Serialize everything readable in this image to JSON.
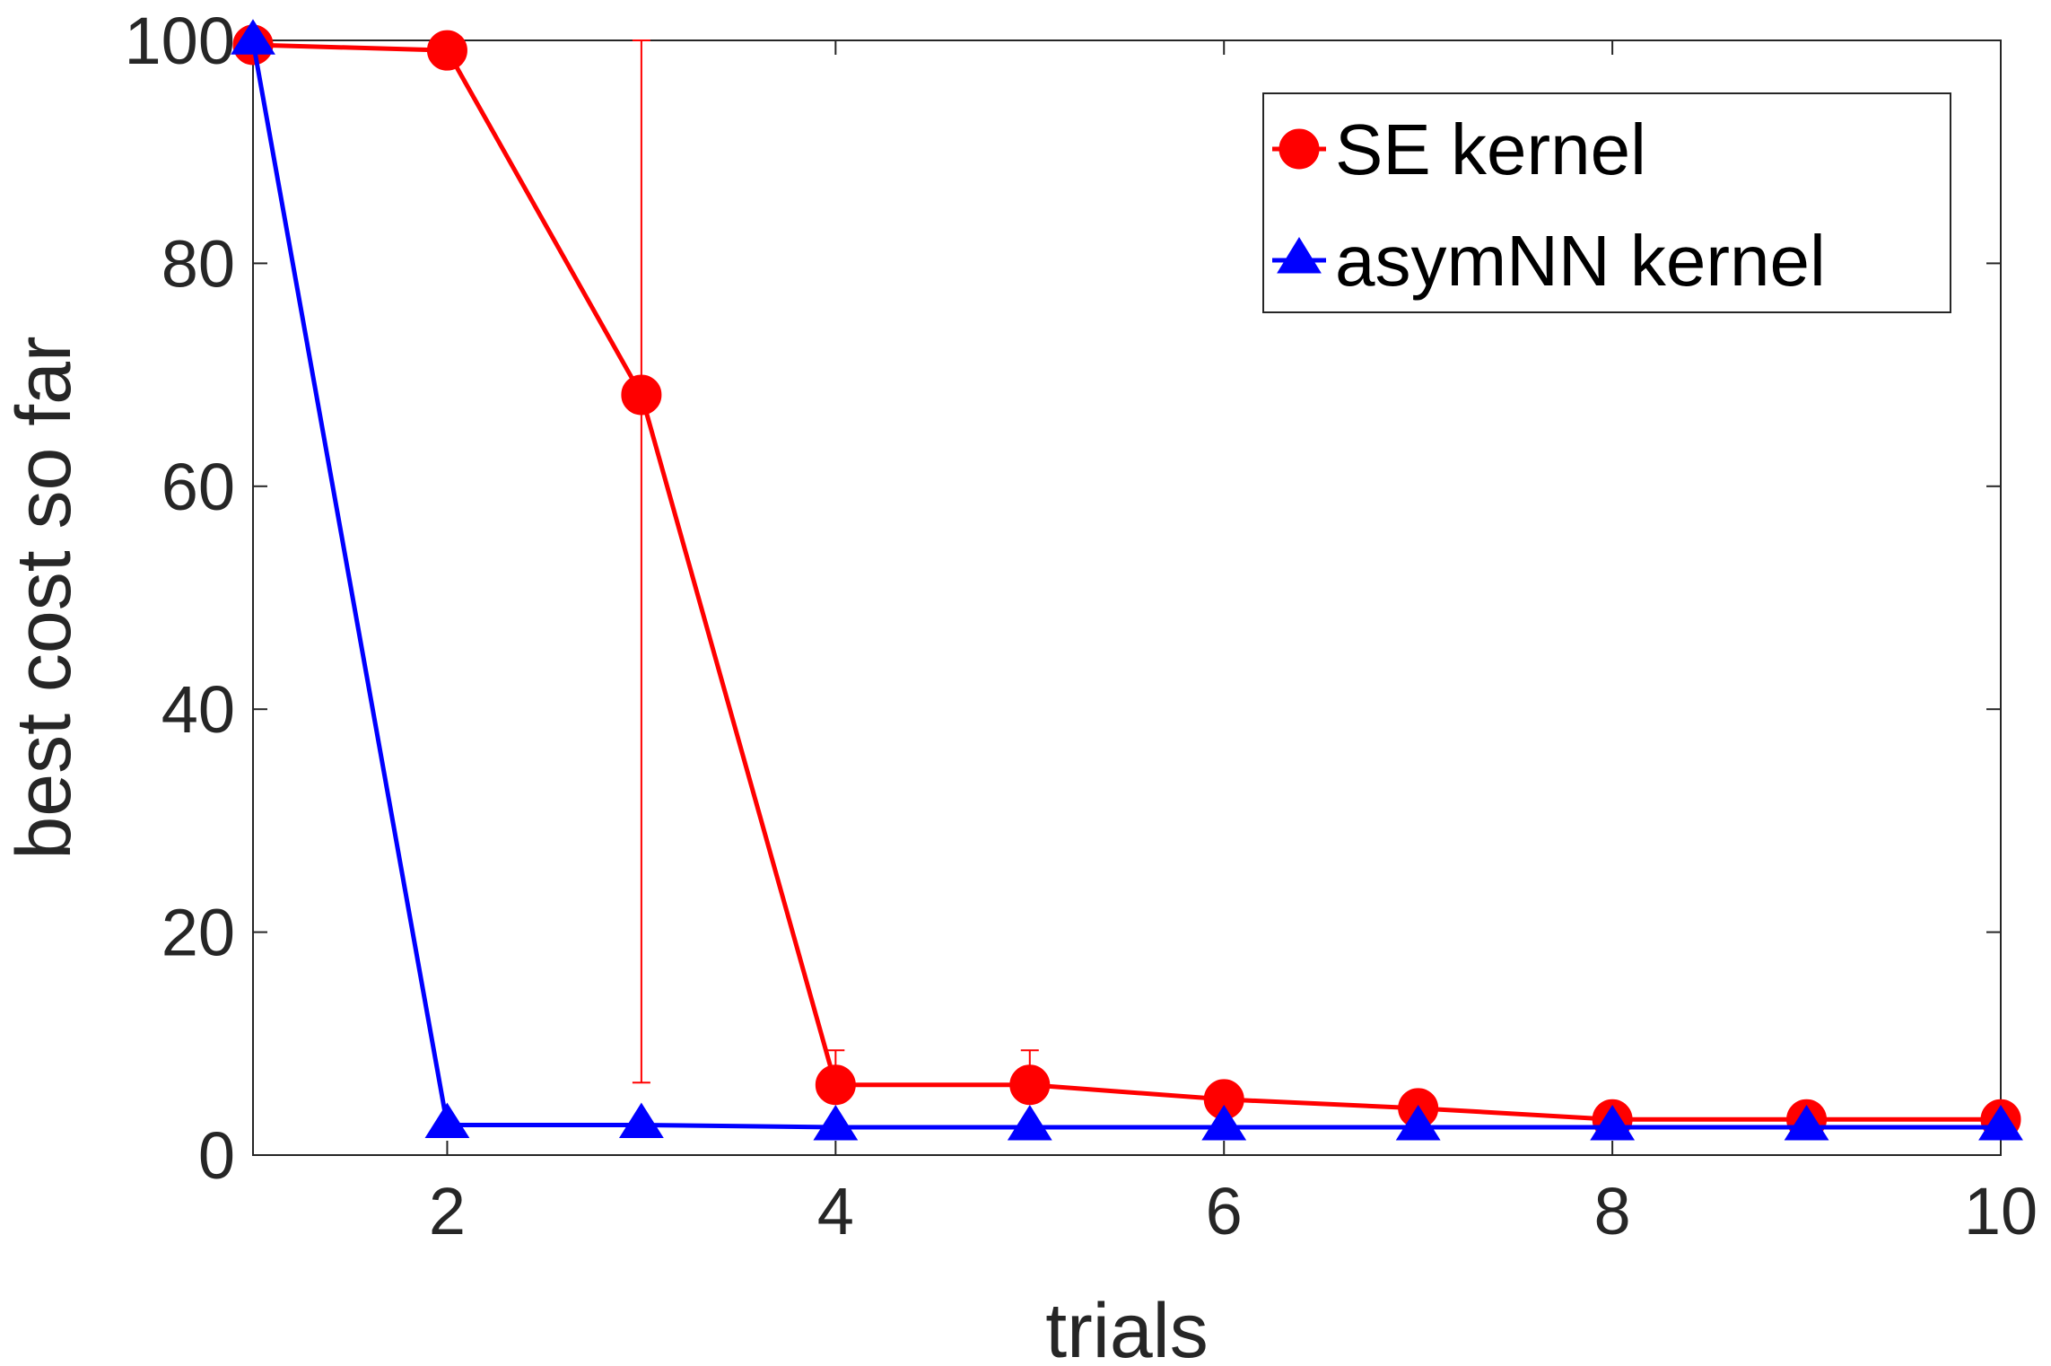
{
  "chart_data": {
    "type": "line",
    "title": "",
    "xlabel": "trials",
    "ylabel": "best cost so far",
    "xlim": [
      1,
      10
    ],
    "ylim": [
      0,
      100
    ],
    "xticks": [
      2,
      4,
      6,
      8,
      10
    ],
    "yticks": [
      0,
      20,
      40,
      60,
      80,
      100
    ],
    "grid": false,
    "legend_position": "top-right",
    "x": [
      1,
      2,
      3,
      4,
      5,
      6,
      7,
      8,
      9,
      10
    ],
    "series": [
      {
        "name": "SE kernel",
        "color": "#ff0000",
        "marker": "circle",
        "values": [
          99.6,
          99.1,
          68.2,
          6.3,
          6.3,
          5.0,
          4.2,
          3.2,
          3.2,
          3.2
        ],
        "error_high": [
          null,
          null,
          100,
          9.4,
          9.4,
          null,
          null,
          null,
          null,
          null
        ],
        "error_low": [
          null,
          null,
          6.5,
          null,
          null,
          null,
          null,
          null,
          null,
          null
        ]
      },
      {
        "name": "asymNN kernel",
        "color": "#0000ff",
        "marker": "triangle",
        "values": [
          99.9,
          2.7,
          2.7,
          2.5,
          2.5,
          2.5,
          2.5,
          2.5,
          2.5,
          2.5
        ]
      }
    ]
  }
}
